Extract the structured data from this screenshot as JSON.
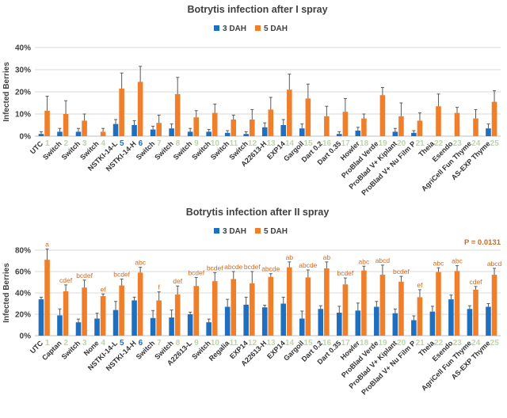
{
  "chart_data": [
    {
      "type": "bar",
      "title": "Botrytis infection after I spray",
      "ylabel": "Infected Berries",
      "ylim": [
        0,
        40
      ],
      "yticks": [
        "0%",
        "10%",
        "20%",
        "30%",
        "40%"
      ],
      "series": [
        {
          "name": "3 DAH",
          "color": "#1f6fc1",
          "values": [
            1,
            2,
            2,
            0,
            5.5,
            5,
            3,
            3.5,
            2,
            2,
            1.5,
            1,
            4,
            5,
            3.5,
            0,
            1,
            2.5,
            0,
            2,
            1.5,
            0,
            0,
            0,
            3.5
          ],
          "errors": [
            1,
            1.5,
            1.5,
            0,
            2,
            2,
            1.5,
            2,
            1.5,
            1,
            1,
            1,
            2,
            2.5,
            2,
            0,
            1,
            1.5,
            0,
            1.5,
            1,
            0,
            0,
            0,
            2
          ]
        },
        {
          "name": "5 DAH",
          "color": "#f07f2b",
          "values": [
            11.5,
            10,
            7,
            2,
            21.5,
            24.5,
            6,
            19,
            8.5,
            10.5,
            7.5,
            7.5,
            12,
            21,
            17,
            9,
            11,
            8,
            18.5,
            9,
            7,
            13.5,
            10.5,
            8,
            15.5
          ],
          "errors": [
            6.5,
            6,
            3,
            1.5,
            7,
            7,
            3.5,
            7.5,
            3,
            4,
            2,
            4.5,
            5.5,
            7,
            6.5,
            4.5,
            6,
            2,
            3.5,
            6,
            3.5,
            5.5,
            2.5,
            4,
            5
          ]
        }
      ],
      "numbers": [
        "1",
        "2",
        "3",
        "4",
        "5",
        "6",
        "7",
        "8",
        "9",
        "10",
        "11",
        "12",
        "13",
        "14",
        "15",
        "16",
        "17",
        "18",
        "19",
        "20",
        "21",
        "22",
        "23",
        "24",
        "25"
      ],
      "number_colors": [
        "#bcd5a8",
        "#bcd5a8",
        "#bcd5a8",
        "#bcd5a8",
        "#1f6fc1",
        "#1f6fc1",
        "#bcd5a8",
        "#bcd5a8",
        "#bcd5a8",
        "#bcd5a8",
        "#bcd5a8",
        "#bcd5a8",
        "#bcd5a8",
        "#bcd5a8",
        "#bcd5a8",
        "#bcd5a8",
        "#bcd5a8",
        "#bcd5a8",
        "#bcd5a8",
        "#bcd5a8",
        "#bcd5a8",
        "#bcd5a8",
        "#bcd5a8",
        "#bcd5a8",
        "#bcd5a8"
      ],
      "categories": [
        "UTC",
        "Switch",
        "Switch",
        "Switch",
        "NSTKI-14-L",
        "NSTKI-14-H",
        "Switch",
        "Switch",
        "Switch",
        "Switch",
        "Switch",
        "Switch",
        "A22613-H",
        "EXP14",
        "Gargoil",
        "Dart 0.2",
        "Dart 0.35",
        "Howler",
        "ProBlad Verde",
        "ProBlad V+ Kiplant",
        "ProBlad V+ Nu Film P",
        "Theia",
        "Esendo",
        "AgriCell Fun Thyme",
        "AS-EXP Thyme"
      ]
    },
    {
      "type": "bar",
      "title": "Botrytis infection after II spray",
      "ylabel": "Infected Berries",
      "ylim": [
        0,
        80
      ],
      "yticks": [
        "0%",
        "20%",
        "40%",
        "60%",
        "80%"
      ],
      "annotation": "P = 0.0131",
      "series": [
        {
          "name": "3 DAH",
          "color": "#1f6fc1",
          "values": [
            34,
            19,
            12.5,
            16,
            24,
            33,
            16.5,
            17,
            20,
            12.5,
            27,
            29,
            26.5,
            30,
            16,
            25,
            21.5,
            23.5,
            27,
            21,
            14.5,
            22.5,
            34,
            25,
            27
          ],
          "errors": [
            2,
            6,
            3,
            5,
            8,
            3,
            7,
            7,
            2,
            3,
            7,
            7,
            2,
            6,
            7,
            3,
            6,
            7,
            5,
            4,
            4,
            5,
            4,
            3,
            3
          ]
        },
        {
          "name": "5 DAH",
          "color": "#f07f2b",
          "values": [
            71,
            41.5,
            45,
            37,
            47,
            59,
            33,
            38.5,
            46.5,
            51,
            53,
            49,
            55,
            64,
            54.5,
            63,
            48,
            61,
            57,
            50.5,
            36,
            59.5,
            60.5,
            43,
            57
          ],
          "errors": [
            10,
            6,
            7,
            2,
            6,
            5,
            8,
            8,
            8,
            8,
            7,
            11,
            3,
            5,
            7,
            6,
            6,
            4,
            9,
            5,
            7,
            4,
            5,
            3,
            6
          ]
        }
      ],
      "significance": [
        "a",
        "cdef",
        "bcdef",
        "ef",
        "bcdef",
        "abc",
        "f",
        "def",
        "bcdef",
        "bcdef",
        "abcde",
        "bcdef",
        "abcde",
        "ab",
        "abcde",
        "ab",
        "bcdef",
        "abc",
        "abcd",
        "bcdef",
        "ef",
        "abc",
        "abc",
        "cdef",
        "abcd"
      ],
      "numbers": [
        "1",
        "2",
        "3",
        "4",
        "5",
        "6",
        "7",
        "8",
        "9",
        "10",
        "11",
        "12",
        "13",
        "14",
        "15",
        "16",
        "17",
        "18",
        "19",
        "20",
        "21",
        "22",
        "23",
        "24",
        "25"
      ],
      "number_colors": [
        "#bcd5a8",
        "#bcd5a8",
        "#bcd5a8",
        "#bcd5a8",
        "#1f6fc1",
        "#1f6fc1",
        "#bcd5a8",
        "#bcd5a8",
        "#bcd5a8",
        "#bcd5a8",
        "#bcd5a8",
        "#bcd5a8",
        "#bcd5a8",
        "#bcd5a8",
        "#bcd5a8",
        "#bcd5a8",
        "#bcd5a8",
        "#bcd5a8",
        "#bcd5a8",
        "#bcd5a8",
        "#bcd5a8",
        "#bcd5a8",
        "#bcd5a8",
        "#bcd5a8",
        "#bcd5a8"
      ],
      "categories": [
        "UTC",
        "Captan",
        "Switch",
        "None",
        "NSTKI-14-L",
        "NSTKI-14-H",
        "Switch",
        "Switch",
        "A22613-L",
        "Switch",
        "Regalia",
        "EXP14",
        "A22613-H",
        "EXP14",
        "Gargoil",
        "Dart 0.2",
        "Dart 0.35",
        "Howler",
        "ProBlad Verde",
        "ProBlad V+ Kiplant",
        "ProBlad V+ Nu Film P",
        "Theia",
        "Esendo",
        "AgriCell Fun Thyme",
        "AS-EXP Thyme"
      ]
    }
  ]
}
